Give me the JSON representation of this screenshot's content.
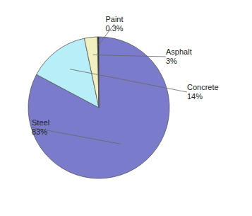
{
  "chart_data": {
    "type": "pie",
    "categories": [
      "Steel",
      "Concrete",
      "Asphalt",
      "Paint"
    ],
    "values": [
      83,
      14,
      3,
      0.3
    ],
    "value_labels": [
      "83%",
      "14%",
      "3%",
      "0.3%"
    ],
    "colors": [
      "#7b7bcb",
      "#b8eef8",
      "#f0f0c0",
      "#222222"
    ],
    "data_labels": true
  }
}
